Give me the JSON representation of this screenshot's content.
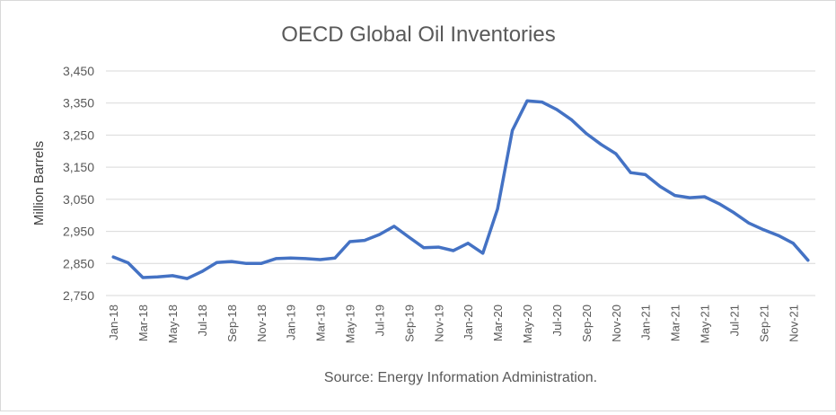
{
  "chart_data": {
    "type": "line",
    "title": "OECD Global Oil Inventories",
    "xlabel": "",
    "ylabel": "Million Barrels",
    "source": "Source: Energy Information Administration.",
    "ylim": [
      2750,
      3450
    ],
    "yticks": [
      "2,750",
      "2,850",
      "2,950",
      "3,050",
      "3,150",
      "3,250",
      "3,350",
      "3,450"
    ],
    "ytick_values": [
      2750,
      2850,
      2950,
      3050,
      3150,
      3250,
      3350,
      3450
    ],
    "grid": true,
    "legend": "none",
    "line_color": "#4472c4",
    "x": [
      "Jan-18",
      "Feb-18",
      "Mar-18",
      "Apr-18",
      "May-18",
      "Jun-18",
      "Jul-18",
      "Aug-18",
      "Sep-18",
      "Oct-18",
      "Nov-18",
      "Dec-18",
      "Jan-19",
      "Feb-19",
      "Mar-19",
      "Apr-19",
      "May-19",
      "Jun-19",
      "Jul-19",
      "Aug-19",
      "Sep-19",
      "Oct-19",
      "Nov-19",
      "Dec-19",
      "Jan-20",
      "Feb-20",
      "Mar-20",
      "Apr-20",
      "May-20",
      "Jun-20",
      "Jul-20",
      "Aug-20",
      "Sep-20",
      "Oct-20",
      "Nov-20",
      "Dec-20",
      "Jan-21",
      "Feb-21",
      "Mar-21",
      "Apr-21",
      "May-21",
      "Jun-21",
      "Jul-21",
      "Aug-21",
      "Sep-21",
      "Oct-21",
      "Nov-21",
      "Dec-21"
    ],
    "xtick_labels": [
      "Jan-18",
      "",
      "Mar-18",
      "",
      "May-18",
      "",
      "Jul-18",
      "",
      "Sep-18",
      "",
      "Nov-18",
      "",
      "Jan-19",
      "",
      "Mar-19",
      "",
      "May-19",
      "",
      "Jul-19",
      "",
      "Sep-19",
      "",
      "Nov-19",
      "",
      "Jan-20",
      "",
      "Mar-20",
      "",
      "May-20",
      "",
      "Jul-20",
      "",
      "Sep-20",
      "",
      "Nov-20",
      "",
      "Jan-21",
      "",
      "Mar-21",
      "",
      "May-21",
      "",
      "Jul-21",
      "",
      "Sep-21",
      "",
      "Nov-21",
      ""
    ],
    "series": [
      {
        "values": [
          2870,
          2852,
          2806,
          2808,
          2812,
          2803,
          2825,
          2853,
          2856,
          2850,
          2850,
          2865,
          2867,
          2865,
          2862,
          2867,
          2918,
          2922,
          2940,
          2966,
          2932,
          2899,
          2901,
          2890,
          2913,
          2882,
          3020,
          3265,
          3357,
          3353,
          3330,
          3298,
          3255,
          3221,
          3192,
          3133,
          3127,
          3090,
          3062,
          3055,
          3058,
          3036,
          3008,
          2976,
          2955,
          2937,
          2913,
          2860
        ]
      }
    ]
  }
}
